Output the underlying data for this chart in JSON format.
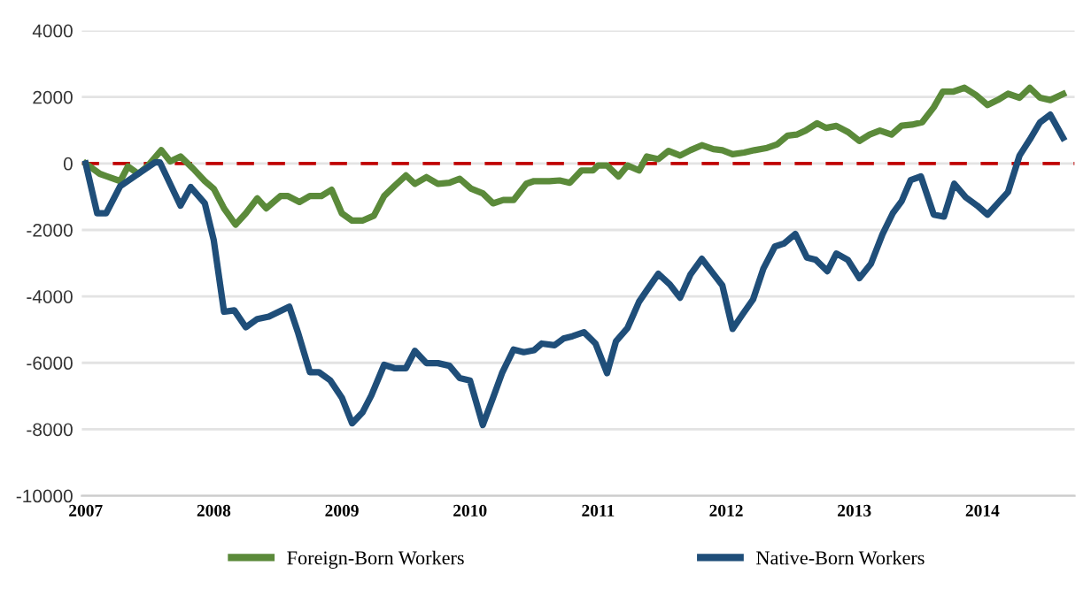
{
  "chart_data": {
    "type": "line",
    "xlim": [
      2006.97,
      2014.72
    ],
    "xticks": [
      {
        "value": 2007,
        "label": "2007"
      },
      {
        "value": 2008,
        "label": "2008"
      },
      {
        "value": 2009,
        "label": "2009"
      },
      {
        "value": 2010,
        "label": "2010"
      },
      {
        "value": 2011,
        "label": "2011"
      },
      {
        "value": 2012,
        "label": "2012"
      },
      {
        "value": 2013,
        "label": "2013"
      },
      {
        "value": 2014,
        "label": "2014"
      }
    ],
    "ylim": [
      -10000,
      4000
    ],
    "yticks": [
      -10000,
      -8000,
      -6000,
      -4000,
      -2000,
      0,
      2000,
      4000
    ],
    "grid": "y",
    "legend": "bottom",
    "line_style": "solid",
    "marker": "none",
    "ref_lines": [
      {
        "axis": "y",
        "value": 0,
        "color": "#c00000",
        "line_style": "dashed"
      }
    ],
    "series": [
      {
        "name": "Foreign-Born Workers",
        "color": "#5b8a3a",
        "x": [
          2007.0,
          2007.11,
          2007.16,
          2007.27,
          2007.33,
          2007.41,
          2007.48,
          2007.59,
          2007.66,
          2007.74,
          2007.84,
          2007.93,
          2008.0,
          2008.08,
          2008.17,
          2008.25,
          2008.34,
          2008.41,
          2008.52,
          2008.58,
          2008.67,
          2008.75,
          2008.84,
          2008.92,
          2009.0,
          2009.08,
          2009.16,
          2009.25,
          2009.33,
          2009.41,
          2009.5,
          2009.57,
          2009.66,
          2009.75,
          2009.84,
          2009.92,
          2010.01,
          2010.1,
          2010.18,
          2010.26,
          2010.34,
          2010.44,
          2010.5,
          2010.62,
          2010.7,
          2010.78,
          2010.87,
          2010.96,
          2011.0,
          2011.07,
          2011.16,
          2011.23,
          2011.32,
          2011.38,
          2011.47,
          2011.55,
          2011.64,
          2011.72,
          2011.81,
          2011.9,
          2011.97,
          2012.05,
          2012.14,
          2012.22,
          2012.32,
          2012.4,
          2012.48,
          2012.55,
          2012.62,
          2012.71,
          2012.78,
          2012.86,
          2012.95,
          2013.04,
          2013.12,
          2013.2,
          2013.29,
          2013.37,
          2013.45,
          2013.53,
          2013.62,
          2013.69,
          2013.77,
          2013.86,
          2013.95,
          2014.04,
          2014.12,
          2014.2,
          2014.29,
          2014.37,
          2014.45,
          2014.53,
          2014.63
        ],
        "values": [
          0,
          -310,
          -380,
          -530,
          -90,
          -310,
          -90,
          400,
          60,
          210,
          -160,
          -530,
          -760,
          -1350,
          -1840,
          -1500,
          -1050,
          -1350,
          -980,
          -980,
          -1160,
          -980,
          -980,
          -790,
          -1500,
          -1720,
          -1720,
          -1570,
          -980,
          -680,
          -360,
          -610,
          -410,
          -610,
          -580,
          -460,
          -760,
          -900,
          -1200,
          -1100,
          -1100,
          -610,
          -530,
          -530,
          -510,
          -580,
          -210,
          -210,
          -60,
          -60,
          -390,
          -60,
          -210,
          210,
          130,
          380,
          240,
          400,
          550,
          430,
          400,
          280,
          330,
          400,
          470,
          580,
          840,
          870,
          990,
          1210,
          1070,
          1130,
          950,
          680,
          870,
          990,
          870,
          1140,
          1170,
          1240,
          1690,
          2160,
          2160,
          2280,
          2060,
          1760,
          1910,
          2100,
          1980,
          2280,
          1980,
          1910,
          2090
        ]
      },
      {
        "name": "Native-Born Workers",
        "color": "#1f4e79",
        "x": [
          2007.0,
          2007.09,
          2007.16,
          2007.27,
          2007.41,
          2007.54,
          2007.58,
          2007.74,
          2007.82,
          2007.93,
          2008.0,
          2008.08,
          2008.16,
          2008.25,
          2008.34,
          2008.43,
          2008.59,
          2008.66,
          2008.75,
          2008.82,
          2008.91,
          2009.0,
          2009.08,
          2009.16,
          2009.23,
          2009.33,
          2009.41,
          2009.5,
          2009.57,
          2009.66,
          2009.75,
          2009.84,
          2009.92,
          2010.0,
          2010.1,
          2010.18,
          2010.25,
          2010.34,
          2010.42,
          2010.5,
          2010.56,
          2010.66,
          2010.73,
          2010.8,
          2010.89,
          2010.98,
          2011.07,
          2011.14,
          2011.23,
          2011.32,
          2011.38,
          2011.47,
          2011.56,
          2011.64,
          2011.72,
          2011.81,
          2011.9,
          2011.97,
          2012.05,
          2012.13,
          2012.21,
          2012.29,
          2012.38,
          2012.45,
          2012.54,
          2012.63,
          2012.7,
          2012.79,
          2012.86,
          2012.95,
          2013.04,
          2013.13,
          2013.22,
          2013.3,
          2013.37,
          2013.44,
          2013.52,
          2013.62,
          2013.7,
          2013.78,
          2013.87,
          2013.96,
          2014.04,
          2014.12,
          2014.2,
          2014.29,
          2014.37,
          2014.45,
          2014.53,
          2014.63
        ],
        "values": [
          0,
          -1500,
          -1500,
          -680,
          -310,
          30,
          30,
          -1270,
          -710,
          -1200,
          -2310,
          -4460,
          -4420,
          -4930,
          -4680,
          -4610,
          -4310,
          -5120,
          -6280,
          -6280,
          -6530,
          -7050,
          -7820,
          -7500,
          -6980,
          -6060,
          -6160,
          -6160,
          -5640,
          -6010,
          -6010,
          -6090,
          -6460,
          -6530,
          -7870,
          -7050,
          -6310,
          -5600,
          -5680,
          -5620,
          -5420,
          -5470,
          -5270,
          -5200,
          -5080,
          -5420,
          -6310,
          -5350,
          -4950,
          -4160,
          -3820,
          -3320,
          -3640,
          -4040,
          -3350,
          -2870,
          -3320,
          -3670,
          -4980,
          -4530,
          -4090,
          -3170,
          -2500,
          -2410,
          -2120,
          -2830,
          -2900,
          -3240,
          -2710,
          -2900,
          -3450,
          -3020,
          -2130,
          -1500,
          -1130,
          -500,
          -390,
          -1540,
          -1600,
          -610,
          -1020,
          -1270,
          -1540,
          -1200,
          -860,
          240,
          720,
          1240,
          1470,
          770
        ]
      }
    ]
  }
}
